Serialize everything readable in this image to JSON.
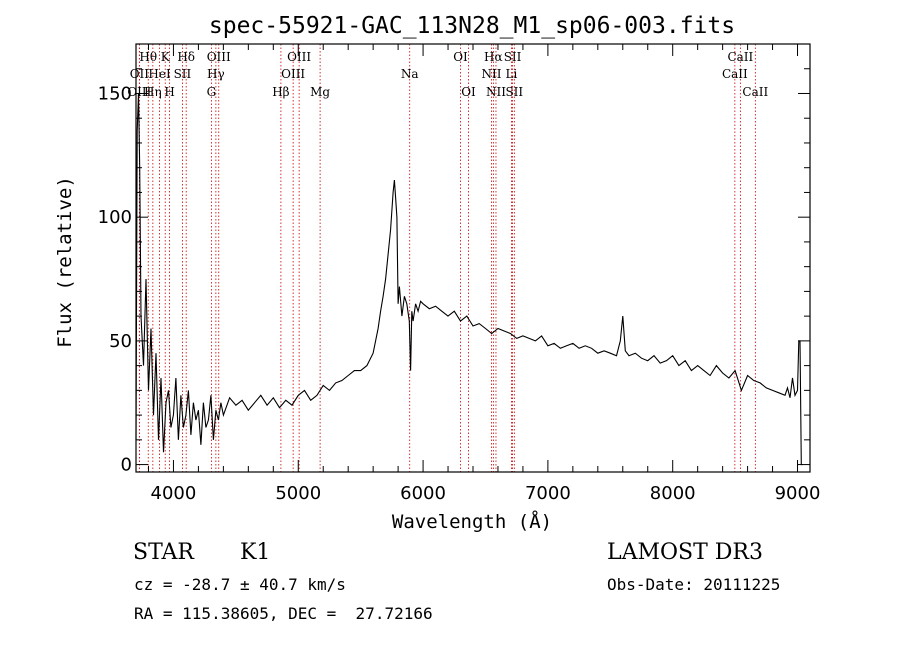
{
  "chart_data": {
    "type": "line",
    "title": "spec-55921-GAC_113N28_M1_sp06-003.fits",
    "xlabel": "Wavelength (Å)",
    "ylabel": "Flux (relative)",
    "xlim": [
      3700,
      9100
    ],
    "ylim": [
      -3,
      170
    ],
    "xticks": [
      4000,
      5000,
      6000,
      7000,
      8000,
      9000
    ],
    "yticks": [
      0,
      50,
      100,
      150
    ],
    "grid": false,
    "series_color": "#000000",
    "line_marker_color": "#cc0000",
    "spectral_lines": [
      {
        "label": "Hθ",
        "wavelength": 3798,
        "row": 0
      },
      {
        "label": "OII",
        "wavelength": 3727,
        "row": 1
      },
      {
        "label": "OIII",
        "wavelength": 3727,
        "row": 2
      },
      {
        "label": "Hη",
        "wavelength": 3835,
        "row": 2
      },
      {
        "label": "HeI",
        "wavelength": 3889,
        "row": 1
      },
      {
        "label": "K",
        "wavelength": 3934,
        "row": 0
      },
      {
        "label": "H",
        "wavelength": 3969,
        "row": 2
      },
      {
        "label": "SII",
        "wavelength": 4072,
        "row": 1
      },
      {
        "label": "Hδ",
        "wavelength": 4102,
        "row": 0
      },
      {
        "label": "OIII",
        "wavelength": 4363,
        "row": 0
      },
      {
        "label": "Hγ",
        "wavelength": 4340,
        "row": 1
      },
      {
        "label": "G",
        "wavelength": 4304,
        "row": 2
      },
      {
        "label": "OIII",
        "wavelength": 5007,
        "row": 0
      },
      {
        "label": "OIII",
        "wavelength": 4959,
        "row": 1
      },
      {
        "label": "Hβ",
        "wavelength": 4861,
        "row": 2
      },
      {
        "label": "Mg",
        "wavelength": 5175,
        "row": 2
      },
      {
        "label": "Na",
        "wavelength": 5893,
        "row": 1
      },
      {
        "label": "OI",
        "wavelength": 6300,
        "row": 0
      },
      {
        "label": "OI",
        "wavelength": 6364,
        "row": 2
      },
      {
        "label": "Hα",
        "wavelength": 6563,
        "row": 0
      },
      {
        "label": "NII",
        "wavelength": 6548,
        "row": 1
      },
      {
        "label": "NII",
        "wavelength": 6584,
        "row": 2
      },
      {
        "label": "SII",
        "wavelength": 6717,
        "row": 0
      },
      {
        "label": "Li",
        "wavelength": 6708,
        "row": 1
      },
      {
        "label": "SII",
        "wavelength": 6731,
        "row": 2
      },
      {
        "label": "CaII",
        "wavelength": 8542,
        "row": 0
      },
      {
        "label": "CaII",
        "wavelength": 8498,
        "row": 1
      },
      {
        "label": "CaII",
        "wavelength": 8662,
        "row": 2
      }
    ],
    "spectrum": {
      "wavelength": [
        3700,
        3710,
        3720,
        3730,
        3740,
        3760,
        3780,
        3800,
        3820,
        3840,
        3860,
        3880,
        3900,
        3920,
        3940,
        3960,
        3980,
        4000,
        4020,
        4040,
        4060,
        4080,
        4100,
        4120,
        4140,
        4160,
        4180,
        4200,
        4220,
        4240,
        4260,
        4280,
        4300,
        4320,
        4340,
        4360,
        4380,
        4400,
        4450,
        4500,
        4550,
        4600,
        4650,
        4700,
        4750,
        4800,
        4850,
        4900,
        4950,
        5000,
        5050,
        5100,
        5150,
        5200,
        5250,
        5300,
        5350,
        5400,
        5450,
        5500,
        5550,
        5600,
        5640,
        5660,
        5680,
        5700,
        5720,
        5740,
        5760,
        5770,
        5780,
        5790,
        5800,
        5810,
        5830,
        5850,
        5870,
        5890,
        5900,
        5910,
        5920,
        5940,
        5960,
        5980,
        6000,
        6050,
        6100,
        6150,
        6200,
        6250,
        6300,
        6350,
        6400,
        6450,
        6500,
        6550,
        6600,
        6650,
        6700,
        6750,
        6800,
        6850,
        6900,
        6950,
        7000,
        7050,
        7100,
        7150,
        7200,
        7250,
        7300,
        7350,
        7400,
        7450,
        7500,
        7550,
        7580,
        7600,
        7620,
        7650,
        7700,
        7750,
        7800,
        7850,
        7900,
        7950,
        8000,
        8050,
        8100,
        8150,
        8200,
        8250,
        8300,
        8350,
        8400,
        8450,
        8500,
        8550,
        8600,
        8650,
        8700,
        8750,
        8800,
        8850,
        8900,
        8920,
        8940,
        8960,
        8980,
        9000,
        9010,
        9020,
        9030,
        9040
      ],
      "flux": [
        10,
        135,
        150,
        120,
        60,
        40,
        75,
        30,
        55,
        20,
        45,
        10,
        35,
        5,
        25,
        30,
        15,
        20,
        35,
        10,
        28,
        15,
        20,
        30,
        12,
        25,
        18,
        22,
        8,
        25,
        15,
        18,
        28,
        10,
        22,
        18,
        25,
        20,
        27,
        24,
        26,
        22,
        25,
        28,
        24,
        27,
        23,
        26,
        24,
        28,
        30,
        26,
        28,
        32,
        30,
        33,
        34,
        36,
        38,
        38,
        40,
        45,
        55,
        62,
        68,
        75,
        85,
        95,
        110,
        115,
        108,
        100,
        65,
        72,
        60,
        68,
        65,
        58,
        38,
        62,
        58,
        65,
        62,
        66,
        65,
        63,
        64,
        62,
        60,
        62,
        58,
        60,
        56,
        57,
        55,
        53,
        55,
        54,
        53,
        51,
        52,
        51,
        50,
        52,
        48,
        49,
        47,
        48,
        49,
        47,
        48,
        47,
        45,
        46,
        45,
        44,
        50,
        60,
        46,
        44,
        45,
        43,
        42,
        44,
        41,
        42,
        44,
        40,
        42,
        38,
        40,
        38,
        36,
        40,
        37,
        35,
        38,
        30,
        36,
        34,
        33,
        31,
        30,
        29,
        28,
        31,
        27,
        35,
        28,
        30,
        50,
        50,
        0,
        0
      ]
    }
  },
  "info": {
    "object_class": "STAR",
    "subclass": "K1",
    "survey": "LAMOST DR3",
    "redshift": "cz = -28.7 ± 40.7 km/s",
    "obs_date": "Obs-Date: 20111225",
    "coords": "RA = 115.38605, DEC =  27.72166"
  }
}
